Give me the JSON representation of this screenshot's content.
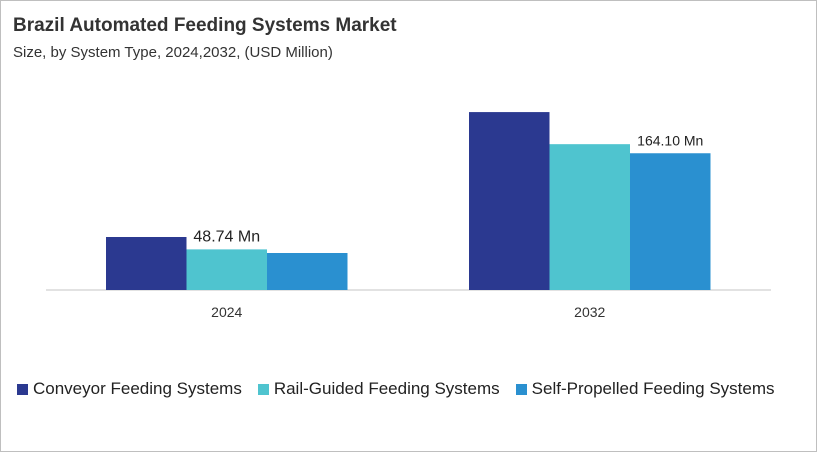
{
  "chart_data": {
    "type": "bar",
    "title": "Brazil Automated Feeding Systems Market",
    "subtitle": "Size, by System Type, 2024,2032, (USD Million)",
    "categories": [
      "2024",
      "2032"
    ],
    "series": [
      {
        "name": "Conveyor Feeding Systems",
        "color": "#2b3990",
        "values": [
          63.6,
          213.5
        ]
      },
      {
        "name": "Rail-Guided Feeding Systems",
        "color": "#4fc4cf",
        "values": [
          48.74,
          175.0
        ]
      },
      {
        "name": "Self-Propelled Feeding Systems",
        "color": "#2a90d0",
        "values": [
          44.4,
          164.1
        ]
      }
    ],
    "data_labels": [
      {
        "category": "2024",
        "series": "Rail-Guided Feeding Systems",
        "text": "48.74 Mn"
      },
      {
        "category": "2032",
        "series": "Self-Propelled Feeding Systems",
        "text": "164.10 Mn"
      }
    ],
    "ylim": [
      0,
      240
    ],
    "grid": false,
    "legend_position": "bottom"
  }
}
